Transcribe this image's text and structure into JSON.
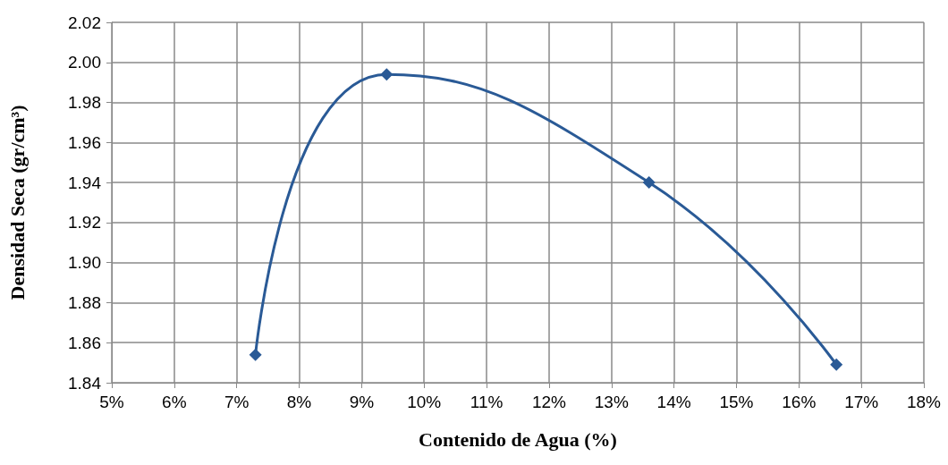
{
  "chart_data": {
    "type": "line",
    "xlabel": "Contenido de Agua (%)",
    "ylabel": "Densidad Seca (gr/cm³)",
    "x": [
      7.3,
      9.4,
      13.6,
      16.6
    ],
    "series": [
      {
        "color": "#2a5a96",
        "values": [
          1.854,
          1.994,
          1.94,
          1.849
        ]
      }
    ],
    "xlim": [
      5,
      18
    ],
    "xticks": [
      {
        "value": 5,
        "label": "5%"
      },
      {
        "value": 6,
        "label": "6%"
      },
      {
        "value": 7,
        "label": "7%"
      },
      {
        "value": 8,
        "label": "8%"
      },
      {
        "value": 9,
        "label": "9%"
      },
      {
        "value": 10,
        "label": "10%"
      },
      {
        "value": 11,
        "label": "11%"
      },
      {
        "value": 12,
        "label": "12%"
      },
      {
        "value": 13,
        "label": "13%"
      },
      {
        "value": 14,
        "label": "14%"
      },
      {
        "value": 15,
        "label": "15%"
      },
      {
        "value": 16,
        "label": "16%"
      },
      {
        "value": 17,
        "label": "17%"
      },
      {
        "value": 18,
        "label": "18%"
      }
    ],
    "ylim": [
      1.84,
      2.02
    ],
    "yticks": [
      1.84,
      1.86,
      1.88,
      {
        "value": 1.9,
        "label": "1.90"
      },
      1.92,
      1.94,
      1.96,
      1.98,
      {
        "value": 2,
        "label": "2.00"
      },
      2.02
    ],
    "grid": true,
    "marker": "diamond",
    "line_style": "solid"
  }
}
